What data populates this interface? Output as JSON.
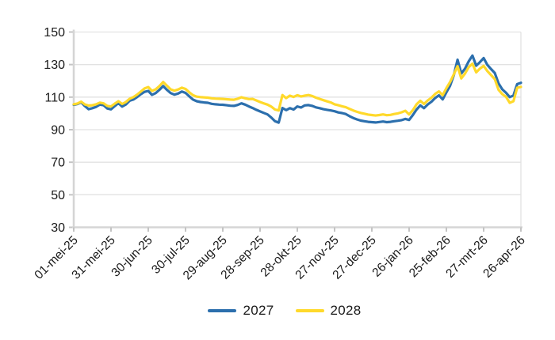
{
  "chart_data": {
    "type": "line",
    "title": "",
    "x_tick_labels": [
      "01-mei-25",
      "31-mei-25",
      "30-jun-25",
      "30-jul-25",
      "29-aug-25",
      "28-sep-25",
      "28-okt-25",
      "27-nov-25",
      "27-dec-25",
      "26-jan-26",
      "25-feb-26",
      "27-mrt-26",
      "26-apr-26"
    ],
    "x_tick_days": [
      0,
      30,
      60,
      90,
      120,
      150,
      180,
      210,
      240,
      270,
      300,
      330,
      360
    ],
    "x_total_days": 360,
    "x_step_days": 3,
    "y_ticks": [
      30,
      50,
      70,
      90,
      110,
      130,
      150
    ],
    "ylim": [
      30,
      150
    ],
    "grid": "horizontal",
    "legend_position": "bottom",
    "series": [
      {
        "name": "2027",
        "color": "#2C6FAD",
        "values": [
          105.3,
          105.8,
          106.8,
          104.5,
          102.6,
          103.2,
          104.0,
          105.4,
          105.0,
          103.0,
          102.5,
          104.5,
          106.3,
          104.2,
          105.5,
          107.8,
          108.5,
          110.0,
          111.8,
          113.2,
          113.8,
          111.4,
          112.5,
          114.5,
          116.8,
          114.5,
          112.5,
          111.5,
          112.2,
          113.4,
          112.6,
          110.5,
          108.5,
          107.5,
          107.0,
          106.7,
          106.5,
          105.9,
          105.6,
          105.4,
          105.3,
          105.0,
          104.7,
          104.6,
          105.2,
          106.2,
          105.4,
          104.3,
          103.3,
          102.2,
          101.2,
          100.3,
          99.4,
          97.5,
          95.2,
          94.3,
          103.3,
          102.0,
          103.2,
          102.4,
          104.3,
          103.6,
          104.9,
          105.1,
          104.6,
          103.7,
          103.2,
          102.6,
          102.2,
          101.8,
          101.3,
          100.6,
          100.2,
          99.6,
          98.3,
          97.2,
          96.3,
          95.6,
          95.2,
          94.8,
          94.6,
          94.4,
          94.7,
          95.0,
          94.6,
          94.8,
          95.2,
          95.5,
          95.9,
          96.6,
          96.0,
          99.0,
          102.4,
          104.9,
          103.2,
          105.5,
          107.2,
          109.5,
          111.1,
          108.6,
          113.0,
          117.0,
          123.5,
          133.0,
          124.5,
          127.5,
          132.0,
          135.5,
          129.3,
          131.5,
          134.0,
          129.8,
          127.2,
          124.8,
          118.4,
          114.8,
          112.7,
          110.0,
          111.0,
          118.0,
          118.8
        ]
      },
      {
        "name": "2028",
        "color": "#FFD92B",
        "values": [
          105.6,
          106.1,
          107.2,
          105.5,
          104.8,
          105.0,
          105.6,
          106.6,
          106.2,
          104.6,
          104.3,
          106.0,
          107.5,
          105.8,
          107.0,
          109.0,
          110.0,
          111.5,
          113.4,
          115.3,
          116.2,
          113.8,
          114.8,
          116.8,
          119.3,
          117.0,
          114.8,
          114.0,
          114.7,
          115.8,
          115.0,
          113.0,
          111.2,
          110.3,
          110.0,
          109.8,
          109.7,
          109.3,
          109.1,
          109.0,
          108.9,
          108.7,
          108.5,
          108.4,
          109.0,
          109.9,
          109.3,
          108.8,
          108.9,
          108.0,
          107.0,
          106.2,
          105.4,
          104.2,
          102.4,
          101.8,
          111.3,
          109.4,
          110.9,
          110.1,
          111.2,
          110.4,
          110.9,
          111.3,
          110.7,
          109.7,
          108.9,
          108.1,
          107.4,
          106.7,
          105.6,
          105.0,
          104.4,
          103.8,
          102.8,
          101.8,
          101.0,
          100.3,
          99.8,
          99.3,
          99.0,
          98.7,
          99.0,
          99.4,
          98.9,
          99.1,
          99.6,
          100.0,
          100.7,
          101.6,
          99.4,
          102.0,
          105.6,
          107.8,
          105.8,
          108.0,
          109.7,
          112.0,
          113.5,
          111.2,
          115.5,
          119.3,
          124.0,
          129.0,
          121.5,
          124.5,
          128.5,
          130.5,
          125.2,
          127.5,
          129.2,
          126.0,
          123.5,
          121.0,
          114.5,
          111.8,
          110.2,
          106.5,
          107.5,
          115.8,
          116.3
        ]
      }
    ]
  },
  "colors": {
    "background": "#FFFFFF",
    "gridline": "#E2E2E2",
    "axis_line": "#D5D5D5",
    "tick_mark": "#C4C4C4",
    "label_text": "#1A1A1A",
    "series_2027": "#2C6FAD",
    "series_2028": "#FFD92B"
  }
}
